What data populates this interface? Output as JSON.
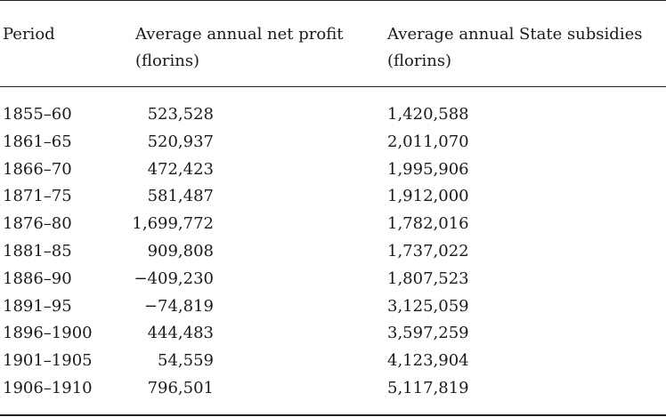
{
  "table": {
    "headers": {
      "period": "Period",
      "profit_line1": "Average annual net profit",
      "profit_line2": "(florins)",
      "subsidy_line1": "Average annual State subsidies",
      "subsidy_line2": "(florins)"
    },
    "rows": [
      {
        "period": "1855–60",
        "profit": "523,528",
        "subsidy": "1,420,588"
      },
      {
        "period": "1861–65",
        "profit": "520,937",
        "subsidy": "2,011,070"
      },
      {
        "period": "1866–70",
        "profit": "472,423",
        "subsidy": "1,995,906"
      },
      {
        "period": "1871–75",
        "profit": "581,487",
        "subsidy": "1,912,000"
      },
      {
        "period": "1876–80",
        "profit": "1,699,772",
        "subsidy": "1,782,016"
      },
      {
        "period": "1881–85",
        "profit": "909,808",
        "subsidy": "1,737,022"
      },
      {
        "period": "1886–90",
        "profit": "−409,230",
        "subsidy": "1,807,523"
      },
      {
        "period": "1891–95",
        "profit": "−74,819",
        "subsidy": "3,125,059"
      },
      {
        "period": "1896–1900",
        "profit": "444,483",
        "subsidy": "3,597,259"
      },
      {
        "period": "1901–1905",
        "profit": "54,559",
        "subsidy": "4,123,904"
      },
      {
        "period": "1906–1910",
        "profit": "796,501",
        "subsidy": "5,117,819"
      }
    ]
  }
}
